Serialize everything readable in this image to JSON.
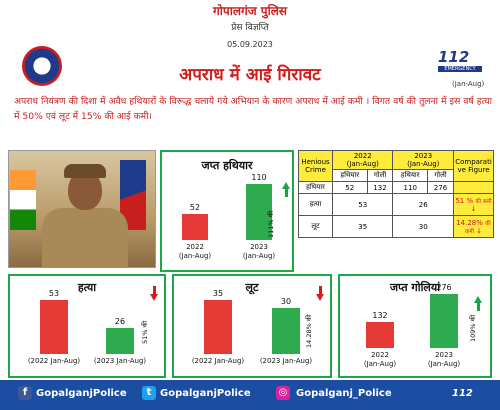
{
  "header": {
    "org": "गोपालगंज पुलिस",
    "doc_type": "प्रेस विज्ञप्ति",
    "date": "05.09.2023",
    "title": "अपराध में आई गिरावट",
    "period_note": "(Jan-Aug)",
    "emergency_label": "112",
    "emergency_sub": "EMERGENCY"
  },
  "intro": {
    "line1": "अपराध नियंत्रण की दिशा में अवैध हथियारों के विरूद्ध चलाये गये अभियान के कारण अपराध में आई  कमी ।  विगत वर्ष की तुलना में इस वर्ष हत्या में 50% एवं लूट में 15% की आई कमी।"
  },
  "weapons_card": {
    "title": "जप्त हथियार",
    "bars": [
      {
        "label": "2022",
        "sub": "(Jan-Aug)",
        "value": 52,
        "color": "#e53935"
      },
      {
        "label": "2023",
        "sub": "(Jan-Aug)",
        "value": 110,
        "color": "#2eab4f"
      }
    ],
    "pct": "111% की",
    "colors": {
      "up": "#1aa34a"
    }
  },
  "table": {
    "col_crime": "Henious Crime",
    "col_2022": "2022",
    "col_2022_sub": "(Jan-Aug)",
    "col_2023": "2023",
    "col_2023_sub": "(Jan-Aug)",
    "col_cmp": "Comparati ve Figure",
    "sub_weapon": "हथियार",
    "sub_bullet": "गोली",
    "rows": [
      {
        "crime": "हथियार",
        "a": "52",
        "b": "132",
        "c": "110",
        "d": "276",
        "cmp": ""
      },
      {
        "crime": "हत्या",
        "v1": "53",
        "v2": "26",
        "cmp_pct": "51 %",
        "cmp_word": "की कमी"
      },
      {
        "crime": "लूट",
        "v1": "35",
        "v2": "30",
        "cmp_pct": "14.28%",
        "cmp_word": "की कमी"
      }
    ]
  },
  "murder_card": {
    "title": "हत्या",
    "bars": [
      {
        "label": "(2022 Jan-Aug)",
        "value": 53,
        "color": "#e53935"
      },
      {
        "label": "(2023 Jan-Aug)",
        "value": 26,
        "color": "#2eab4f"
      }
    ],
    "pct": "51% की"
  },
  "robbery_card": {
    "title": "लूट",
    "bars": [
      {
        "label": "(2022 Jan-Aug)",
        "value": 35,
        "color": "#e53935"
      },
      {
        "label": "(2023 Jan-Aug)",
        "value": 30,
        "color": "#2eab4f"
      }
    ],
    "pct": "14.28% की"
  },
  "bullets_card": {
    "title": "जप्त गोलियां",
    "bars": [
      {
        "label": "2022",
        "sub": "(Jan-Aug)",
        "value": 132,
        "color": "#e53935"
      },
      {
        "label": "2023",
        "sub": "(Jan-Aug)",
        "value": 276,
        "color": "#2eab4f"
      }
    ],
    "pct": "109% की"
  },
  "footer": {
    "facebook": "GopalganjPolice",
    "twitter": "GopalganjPolice",
    "instagram": "Gopalganj_Police",
    "badge": "112"
  }
}
